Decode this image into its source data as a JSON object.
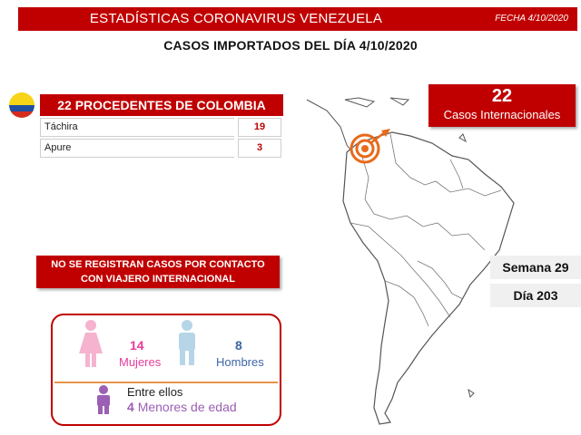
{
  "header": {
    "title": "ESTADÍSTICAS CORONAVIRUS VENEZUELA",
    "date": "FECHA 4/10/2020"
  },
  "subtitle": "CASOS IMPORTADOS DEL DÍA  4/10/2020",
  "colombia": {
    "heading": "22 PROCEDENTES DE COLOMBIA",
    "rows": [
      {
        "name": "Táchira",
        "value": "19"
      },
      {
        "name": "Apure",
        "value": "3"
      }
    ],
    "flag_colors": [
      "#f7d417",
      "#1f4fa0",
      "#d52b1e"
    ]
  },
  "international": {
    "count": "22",
    "label": "Casos Internacionales"
  },
  "calendar": {
    "week": "Semana 29",
    "day": "Día 203"
  },
  "notice": {
    "line1": "NO SE REGISTRAN CASOS POR CONTACTO",
    "line2": "CON VIAJERO INTERNACIONAL"
  },
  "gender": {
    "female_count": "14",
    "female_label": "Mujeres",
    "male_count": "8",
    "male_label": "Hombres",
    "among_text": "Entre ellos",
    "minors_count": "4",
    "minors_label": "Menores de edad"
  },
  "colors": {
    "accent": "#c00000",
    "female": "#f5b3cf",
    "male": "#b6d6e8",
    "child": "#9b5fb5",
    "marker": "#e86a1a"
  },
  "icons": [
    "colombia-flag-icon",
    "female-person-icon",
    "male-person-icon",
    "child-person-icon",
    "origin-target-icon",
    "arrow-icon"
  ]
}
